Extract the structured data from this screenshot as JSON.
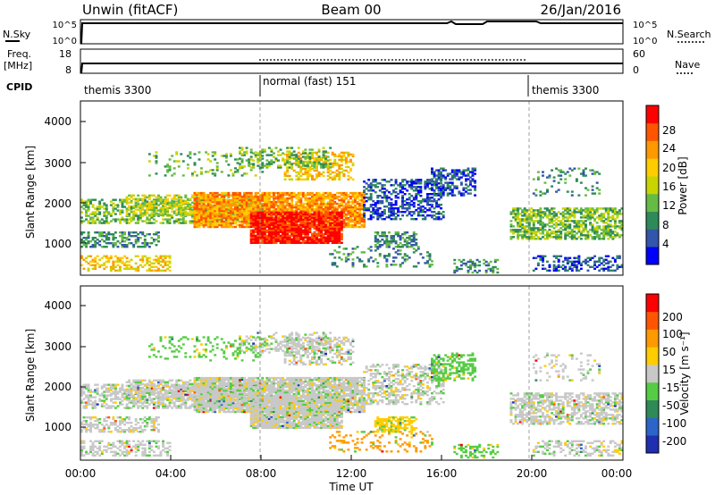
{
  "header": {
    "radar": "Unwin (fitACF)",
    "beam": "Beam 00",
    "date": "26/Jan/2016"
  },
  "nsky_panel": {
    "left_label": "N.Sky",
    "left_ticks": [
      "10^5",
      "10^0"
    ],
    "right_label": "N.Search",
    "right_ticks": [
      "10^5",
      "10^0"
    ]
  },
  "freq_panel": {
    "left_label_line1": "Freq.",
    "left_label_line2": "[MHz]",
    "left_ticks": [
      "18",
      "8"
    ],
    "right_label": "Nave",
    "right_ticks": [
      "60",
      "0"
    ]
  },
  "cpid": {
    "label": "CPID",
    "segments": [
      {
        "name": "themis 3300",
        "start_hour": 0,
        "end_hour": 8
      },
      {
        "name": "normal (fast) 151",
        "start_hour": 8,
        "end_hour": 20
      },
      {
        "name": "themis 3300",
        "start_hour": 20,
        "end_hour": 24
      }
    ]
  },
  "x_axis": {
    "label": "Time UT",
    "ticks": [
      "00:00",
      "04:00",
      "08:00",
      "12:00",
      "16:00",
      "20:00",
      "00:00"
    ],
    "range_hours": [
      0,
      24
    ]
  },
  "power_panel": {
    "ylabel": "Slant Range [km]",
    "yticks": [
      "4000",
      "3000",
      "2000",
      "1000"
    ],
    "colorbar_label": "Power [dB]",
    "colorbar_ticks": [
      "28",
      "24",
      "20",
      "16",
      "12",
      "8",
      "4"
    ],
    "colors": [
      "#0000ff",
      "#3355aa",
      "#2e8b57",
      "#66bb44",
      "#c8d400",
      "#ffcc00",
      "#ff9900",
      "#ff5500",
      "#ff0000"
    ]
  },
  "velocity_panel": {
    "ylabel": "Slant Range [km]",
    "yticks": [
      "4000",
      "3000",
      "2000",
      "1000"
    ],
    "colorbar_label": "Velocity [m s⁻¹]",
    "colorbar_ticks": [
      "200",
      "100",
      "50",
      "15",
      "-15",
      "-50",
      "-100",
      "-200"
    ],
    "colors": [
      "#1f2fb0",
      "#2c64c8",
      "#2e8b57",
      "#55cc44",
      "#c8c8c8",
      "#ffcc00",
      "#ff9900",
      "#ff5500",
      "#ff0000"
    ]
  },
  "chart_data": {
    "type": "heatmap",
    "title": "Unwin (fitACF) Beam 00 26/Jan/2016",
    "xlabel": "Time UT",
    "ylabel": "Slant Range [km]",
    "xlim_hours": [
      0,
      24
    ],
    "ylim_km": [
      200,
      4600
    ],
    "series": [
      {
        "name": "Power [dB]",
        "color_scale": [
          4,
          8,
          12,
          16,
          20,
          24,
          28
        ]
      },
      {
        "name": "Velocity [m s⁻¹]",
        "color_scale": [
          -200,
          -100,
          -50,
          -15,
          15,
          50,
          100,
          200
        ]
      }
    ]
  }
}
